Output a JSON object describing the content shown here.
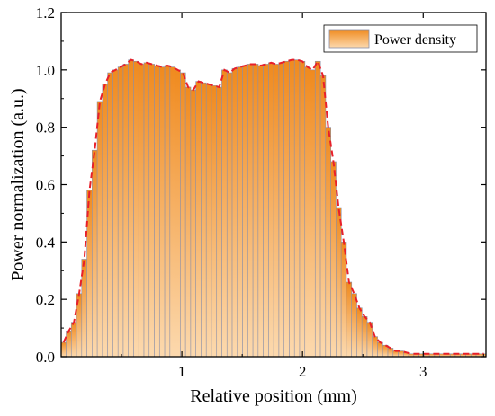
{
  "colors": {
    "bar_top": "#F08A1E",
    "bar_bottom": "#FCD9AE",
    "bar_edge": "#8A8FA8",
    "envelope": "#E8202A",
    "axis": "#000000"
  },
  "chart_data": {
    "type": "bar",
    "title": "",
    "xlabel": "Relative position (mm)",
    "ylabel": "Power normalization (a.u.)",
    "xlim": [
      0.0,
      3.52
    ],
    "ylim": [
      0.0,
      1.2
    ],
    "xticks": [
      1,
      2,
      3
    ],
    "xtick_labels": [
      "1",
      "2",
      "3"
    ],
    "yticks": [
      0.0,
      0.2,
      0.4,
      0.6,
      0.8,
      1.0,
      1.2
    ],
    "ytick_labels": [
      "0.0",
      "0.2",
      "0.4",
      "0.6",
      "0.8",
      "1.0",
      "1.2"
    ],
    "grid": false,
    "legend": {
      "position": "top-right",
      "entries": [
        "Power density"
      ]
    },
    "series": [
      {
        "name": "Power density",
        "bar_width": 0.044,
        "x": [
          0.02,
          0.063,
          0.106,
          0.149,
          0.192,
          0.235,
          0.278,
          0.321,
          0.364,
          0.407,
          0.45,
          0.493,
          0.536,
          0.579,
          0.622,
          0.665,
          0.708,
          0.751,
          0.794,
          0.837,
          0.88,
          0.923,
          0.966,
          1.009,
          1.052,
          1.095,
          1.138,
          1.181,
          1.224,
          1.267,
          1.31,
          1.353,
          1.396,
          1.439,
          1.482,
          1.525,
          1.568,
          1.611,
          1.654,
          1.697,
          1.74,
          1.783,
          1.826,
          1.869,
          1.912,
          1.955,
          1.998,
          2.041,
          2.084,
          2.127,
          2.17,
          2.213,
          2.256,
          2.299,
          2.342,
          2.385,
          2.428,
          2.471,
          2.514,
          2.557,
          2.6,
          2.643,
          2.686,
          2.729,
          2.772,
          2.815,
          2.858,
          2.901,
          2.944,
          2.987,
          3.03,
          3.073,
          3.116,
          3.159,
          3.202,
          3.245,
          3.288,
          3.331,
          3.374,
          3.417,
          3.46,
          3.503
        ],
        "values": [
          0.05,
          0.09,
          0.12,
          0.22,
          0.34,
          0.58,
          0.72,
          0.89,
          0.95,
          0.99,
          1.0,
          1.01,
          1.02,
          1.035,
          1.03,
          1.02,
          1.025,
          1.02,
          1.015,
          1.01,
          1.015,
          1.01,
          1.0,
          0.99,
          0.94,
          0.93,
          0.96,
          0.955,
          0.95,
          0.945,
          0.94,
          1.0,
          0.99,
          1.005,
          1.01,
          1.015,
          1.02,
          1.02,
          1.015,
          1.02,
          1.025,
          1.02,
          1.025,
          1.03,
          1.035,
          1.035,
          1.03,
          1.01,
          1.0,
          1.03,
          0.98,
          0.8,
          0.68,
          0.52,
          0.4,
          0.26,
          0.22,
          0.17,
          0.14,
          0.12,
          0.07,
          0.05,
          0.04,
          0.03,
          0.02,
          0.02,
          0.015,
          0.01,
          0.01,
          0.01,
          0.01,
          0.01,
          0.01,
          0.01,
          0.01,
          0.01,
          0.01,
          0.01,
          0.01,
          0.01,
          0.01,
          0.01
        ]
      }
    ]
  }
}
